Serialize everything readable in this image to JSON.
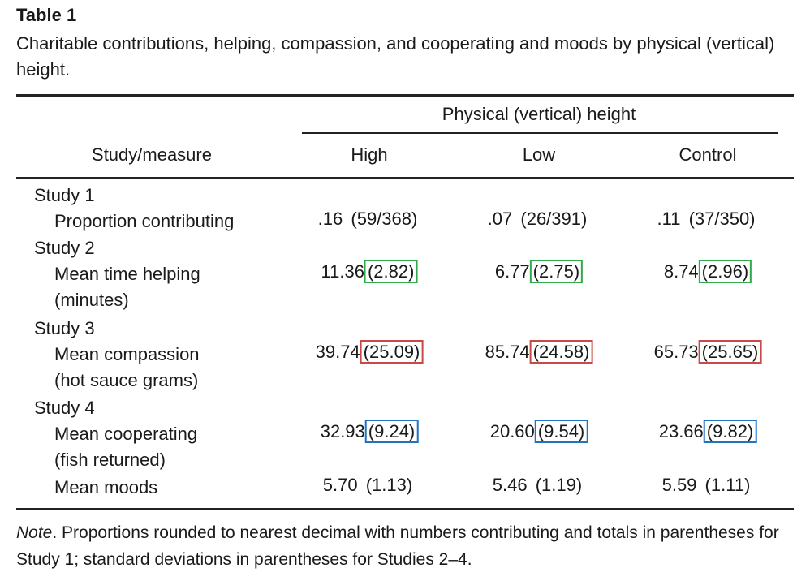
{
  "caption": {
    "label": "Table 1",
    "text": "Charitable contributions, helping, compassion, and cooperating and moods by physical (vertical) height."
  },
  "header": {
    "spanner": "Physical (vertical) height",
    "stub": "Study/measure",
    "columns": [
      "High",
      "Low",
      "Control"
    ]
  },
  "highlight_colors": {
    "study2": "#2eaa4a",
    "study3": "#c94a44",
    "study4": "#1f72c4"
  },
  "rows": [
    {
      "study": "Study 1",
      "measure": "Proportion contributing",
      "measure2": "",
      "cells": [
        {
          "mean": ".16",
          "paren": "(59/368)"
        },
        {
          "mean": ".07",
          "paren": "(26/391)"
        },
        {
          "mean": ".11",
          "paren": "(37/350)"
        }
      ]
    },
    {
      "study": "Study 2",
      "measure": "Mean time helping",
      "measure2": "(minutes)",
      "cells": [
        {
          "mean": "11.36",
          "paren": "(2.82)"
        },
        {
          "mean": "6.77",
          "paren": "(2.75)"
        },
        {
          "mean": "8.74",
          "paren": "(2.96)"
        }
      ]
    },
    {
      "study": "Study 3",
      "measure": "Mean compassion",
      "measure2": "(hot sauce grams)",
      "cells": [
        {
          "mean": "39.74",
          "paren": "(25.09)"
        },
        {
          "mean": "85.74",
          "paren": "(24.58)"
        },
        {
          "mean": "65.73",
          "paren": "(25.65)"
        }
      ]
    },
    {
      "study": "Study 4",
      "measure": "Mean cooperating",
      "measure2": "(fish returned)",
      "cells": [
        {
          "mean": "32.93",
          "paren": "(9.24)"
        },
        {
          "mean": "20.60",
          "paren": "(9.54)"
        },
        {
          "mean": "23.66",
          "paren": "(9.82)"
        }
      ]
    },
    {
      "study": "",
      "measure": "Mean moods",
      "measure2": "",
      "cells": [
        {
          "mean": "5.70",
          "paren": "(1.13)"
        },
        {
          "mean": "5.46",
          "paren": "(1.19)"
        },
        {
          "mean": "5.59",
          "paren": "(1.11)"
        }
      ]
    }
  ],
  "note": {
    "label": "Note",
    "text": ". Proportions rounded to nearest decimal with numbers contributing and totals in parentheses for Study 1; standard deviations in parentheses for Studies 2–4."
  }
}
